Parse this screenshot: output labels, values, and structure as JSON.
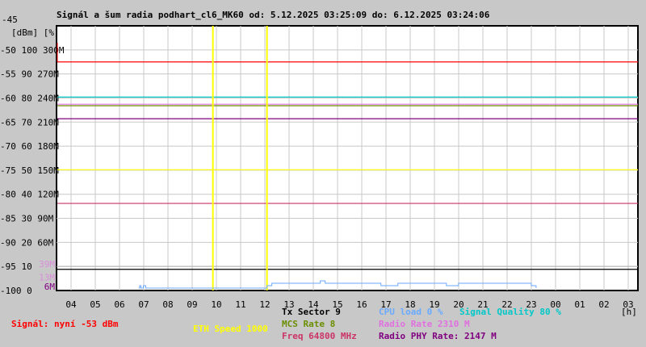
{
  "chart_data": {
    "type": "line",
    "title": "Signál a šum radia podhart_cl6_MK60 od: 5.12.2025 03:25:09 do: 6.12.2025 03:24:06",
    "units_label": "[dBm] [%]",
    "xunit": "[h]",
    "xlim": [
      3.42,
      27.4
    ],
    "ylim_dbm": [
      -100,
      -45
    ],
    "grid": true,
    "x_ticks": [
      "04",
      "05",
      "06",
      "07",
      "08",
      "09",
      "10",
      "11",
      "12",
      "13",
      "14",
      "15",
      "16",
      "17",
      "18",
      "19",
      "20",
      "21",
      "22",
      "23",
      "00",
      "01",
      "02",
      "03"
    ],
    "y_ticks": [
      {
        "dbm": "-45",
        "pct": "",
        "m": ""
      },
      {
        "dbm": "-50",
        "pct": "100",
        "m": "300M"
      },
      {
        "dbm": "-55",
        "pct": "90",
        "m": "270M"
      },
      {
        "dbm": "-60",
        "pct": "80",
        "m": "240M"
      },
      {
        "dbm": "-65",
        "pct": "70",
        "m": "210M"
      },
      {
        "dbm": "-70",
        "pct": "60",
        "m": "180M"
      },
      {
        "dbm": "-75",
        "pct": "50",
        "m": "150M"
      },
      {
        "dbm": "-80",
        "pct": "40",
        "m": "120M"
      },
      {
        "dbm": "-85",
        "pct": "30",
        "m": "90M"
      },
      {
        "dbm": "-90",
        "pct": "20",
        "m": "60M"
      },
      {
        "dbm": "-95",
        "pct": "10",
        "m": ""
      },
      {
        "dbm": "-100",
        "pct": "0",
        "m": ""
      }
    ],
    "extra_ticks": [
      {
        "label": "39M",
        "dbm": -94.5,
        "color": "#d98ed9"
      },
      {
        "label": "13M",
        "dbm": -98.2,
        "color": "#d98ed9"
      },
      {
        "label": "6M",
        "dbm": -99.2,
        "color": "#800080"
      }
    ],
    "hlines": [
      {
        "name": "signal",
        "dbm": -52.5,
        "color": "#ff0000"
      },
      {
        "name": "signal-quality",
        "dbm": -59.8,
        "color": "#00c8c8"
      },
      {
        "name": "radio-rate",
        "dbm": -61.3,
        "color": "#e070e0"
      },
      {
        "name": "mcs-rate",
        "dbm": -61.6,
        "color": "#6b8e00"
      },
      {
        "name": "radio-phy-rate",
        "dbm": -64.3,
        "color": "#800080"
      },
      {
        "name": "eth-speed",
        "dbm": -74.9,
        "color": "#ffff00"
      },
      {
        "name": "freq",
        "dbm": -81.9,
        "color": "#cc3366"
      },
      {
        "name": "noise",
        "dbm": -95.6,
        "color": "#000000"
      },
      {
        "name": "radio-rate-min",
        "dbm": -95.0,
        "color": "#b0b0b0"
      }
    ],
    "vlines": [
      {
        "hour": 9.87,
        "color": "#ffff00"
      },
      {
        "hour": 12.1,
        "color": "#ffff00"
      }
    ],
    "series": [
      {
        "name": "CPU load",
        "color": "#6aaaff",
        "unit": "%",
        "points": [
          [
            6.8,
            0
          ],
          [
            6.85,
            1
          ],
          [
            6.9,
            0
          ],
          [
            7.0,
            1
          ],
          [
            7.1,
            0
          ],
          [
            12.0,
            0
          ],
          [
            12.1,
            1
          ],
          [
            12.3,
            2
          ],
          [
            13.8,
            2
          ],
          [
            14.3,
            3
          ],
          [
            14.5,
            2
          ],
          [
            16.6,
            2
          ],
          [
            16.8,
            1
          ],
          [
            17.5,
            2
          ],
          [
            19.3,
            2
          ],
          [
            19.5,
            1
          ],
          [
            20.0,
            2
          ],
          [
            22.9,
            2
          ],
          [
            23.0,
            1
          ],
          [
            23.2,
            0
          ]
        ]
      }
    ]
  },
  "legend": {
    "signal": "Signál: nyní -53 dBm",
    "eth": "ETH Speed 1000",
    "tx_sector": "Tx Sector 9",
    "mcs": "MCS Rate 8",
    "freq": "Freq 64800 MHz",
    "cpu": "CPU load 0 %",
    "radio_rate": "Radio Rate 2310 M",
    "phy_rate": "Radio PHY Rate: 2147 M",
    "quality": "Signal Quality 80 %"
  }
}
